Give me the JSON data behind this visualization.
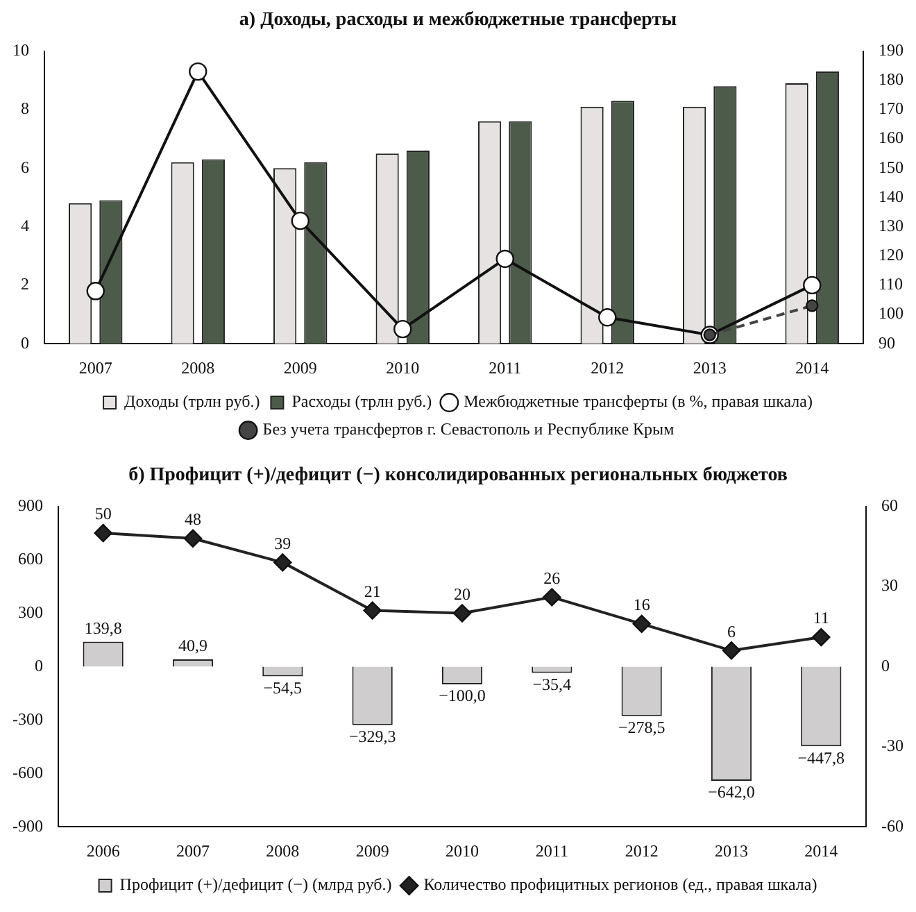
{
  "chart_data": [
    {
      "type": "bar",
      "title": "а) Доходы, расходы и межбюджетные трансферты",
      "categories": [
        "2007",
        "2008",
        "2009",
        "2010",
        "2011",
        "2012",
        "2013",
        "2014"
      ],
      "series": [
        {
          "name": "Доходы (трлн руб.)",
          "color": "#e6e2e2",
          "values": [
            4.8,
            6.2,
            6.0,
            6.5,
            7.6,
            8.1,
            8.1,
            8.9
          ]
        },
        {
          "name": "Расходы (трлн руб.)",
          "color": "#4d5b4a",
          "values": [
            4.9,
            6.3,
            6.2,
            6.6,
            7.6,
            8.3,
            8.8,
            9.3
          ]
        },
        {
          "name": "Межбюджетные трансферты (в %, правая шкала)",
          "type": "line",
          "axis": "y2",
          "color": "#111111",
          "marker": "circle",
          "line_style": "solid",
          "values": [
            108,
            183,
            132,
            95,
            119,
            99,
            93,
            110
          ]
        },
        {
          "name": "Без учета трансфертов г. Севастополь и Республике Крым",
          "type": "line",
          "axis": "y2",
          "color": "#444444",
          "marker": "circle",
          "line_style": "dashed",
          "values": [
            null,
            null,
            null,
            null,
            null,
            null,
            93,
            103
          ]
        }
      ],
      "ylim": [
        0,
        10
      ],
      "yticks": [
        0,
        2,
        4,
        6,
        8,
        10
      ],
      "y2lim": [
        90,
        190
      ],
      "y2ticks": [
        90,
        100,
        110,
        120,
        130,
        140,
        150,
        160,
        170,
        180,
        190
      ],
      "grid": false,
      "legend": "bottom"
    },
    {
      "type": "bar",
      "title": "б) Профицит (+)/дефицит (−) консолидированных региональных бюджетов",
      "categories": [
        "2006",
        "2007",
        "2008",
        "2009",
        "2010",
        "2011",
        "2012",
        "2013",
        "2014"
      ],
      "series": [
        {
          "name": "Профицит (+)/дефицит (−) (млрд руб.)",
          "color": "#cfcdcd",
          "values": [
            139.8,
            40.9,
            -54.5,
            -329.3,
            -100.0,
            -35.4,
            -278.5,
            -642.0,
            -447.8
          ],
          "value_labels": [
            "139,8",
            "40,9",
            "−54,5",
            "−329,3",
            "−100,0",
            "−35,4",
            "−278,5",
            "−642,0",
            "−447,8"
          ]
        },
        {
          "name": "Количество профицитных регионов (ед., правая шкала)",
          "type": "line",
          "axis": "y2",
          "color": "#222222",
          "marker": "diamond",
          "line_style": "solid",
          "values": [
            50,
            48,
            39,
            21,
            20,
            26,
            16,
            6,
            11
          ],
          "value_labels": [
            "50",
            "48",
            "39",
            "21",
            "20",
            "26",
            "16",
            "6",
            "11"
          ]
        }
      ],
      "ylim": [
        -900,
        900
      ],
      "yticks": [
        -900,
        -600,
        -300,
        0,
        300,
        600,
        900
      ],
      "y2lim": [
        -60,
        60
      ],
      "y2ticks": [
        -60,
        -30,
        0,
        30,
        60
      ],
      "grid": false,
      "legend": "bottom"
    }
  ]
}
